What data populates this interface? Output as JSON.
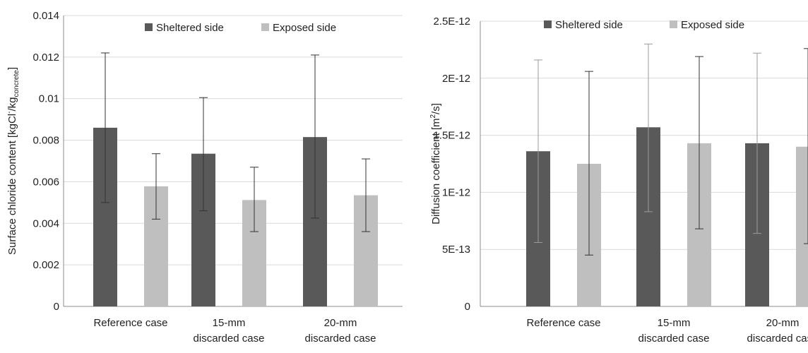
{
  "chart_data": [
    {
      "type": "bar",
      "categories": [
        "Reference case",
        "15-mm discarded case",
        "20-mm discarded case"
      ],
      "ylabel_main": "Surface chloride content [kgCl",
      "ylabel_sup": "-",
      "ylabel_mid": "/kg",
      "ylabel_sub": "concrete",
      "ylabel_end": "]",
      "ylim": [
        0,
        0.014
      ],
      "yticks": [
        "0",
        "0.002",
        "0.004",
        "0.006",
        "0.008",
        "0.01",
        "0.012",
        "0.014"
      ],
      "ytick_values": [
        0,
        0.002,
        0.004,
        0.006,
        0.008,
        0.01,
        0.012,
        0.014
      ],
      "grid": true,
      "legend_position": "top",
      "series": [
        {
          "name": "Sheltered side",
          "color": "#595959",
          "values": [
            0.0086,
            0.00735,
            0.00815
          ],
          "err_low": [
            0.005,
            0.0046,
            0.00425
          ],
          "err_high": [
            0.0122,
            0.01005,
            0.0121
          ]
        },
        {
          "name": "Exposed side",
          "color": "#bfbfbf",
          "values": [
            0.00578,
            0.00512,
            0.00535
          ],
          "err_low": [
            0.0042,
            0.0036,
            0.0036
          ],
          "err_high": [
            0.00735,
            0.0067,
            0.0071
          ]
        }
      ]
    },
    {
      "type": "bar",
      "categories": [
        "Reference case",
        "15-mm discarded case",
        "20-mm discarded case"
      ],
      "ylabel_main": "Diffusion coefficient [m",
      "ylabel_sup": "2",
      "ylabel_mid": "/s]",
      "ylabel_sub": "",
      "ylabel_end": "",
      "ylim": [
        0,
        2.5e-12
      ],
      "yticks": [
        "0",
        "5E-13",
        "1E-12",
        "1.5E-12",
        "2E-12",
        "2.5E-12"
      ],
      "ytick_values": [
        0,
        5e-13,
        1e-12,
        1.5e-12,
        2e-12,
        2.5e-12
      ],
      "grid": true,
      "legend_position": "top",
      "series": [
        {
          "name": "Sheltered side",
          "color": "#595959",
          "values": [
            1.36e-12,
            1.57e-12,
            1.43e-12
          ],
          "err_low": [
            5.6e-13,
            8.3e-13,
            6.4e-13
          ],
          "err_high": [
            2.16e-12,
            2.3e-12,
            2.22e-12
          ]
        },
        {
          "name": "Exposed side",
          "color": "#bfbfbf",
          "values": [
            1.25e-12,
            1.43e-12,
            1.4e-12
          ],
          "err_low": [
            4.5e-13,
            6.8e-13,
            5.5e-13
          ],
          "err_high": [
            2.06e-12,
            2.19e-12,
            2.26e-12
          ]
        }
      ]
    }
  ]
}
